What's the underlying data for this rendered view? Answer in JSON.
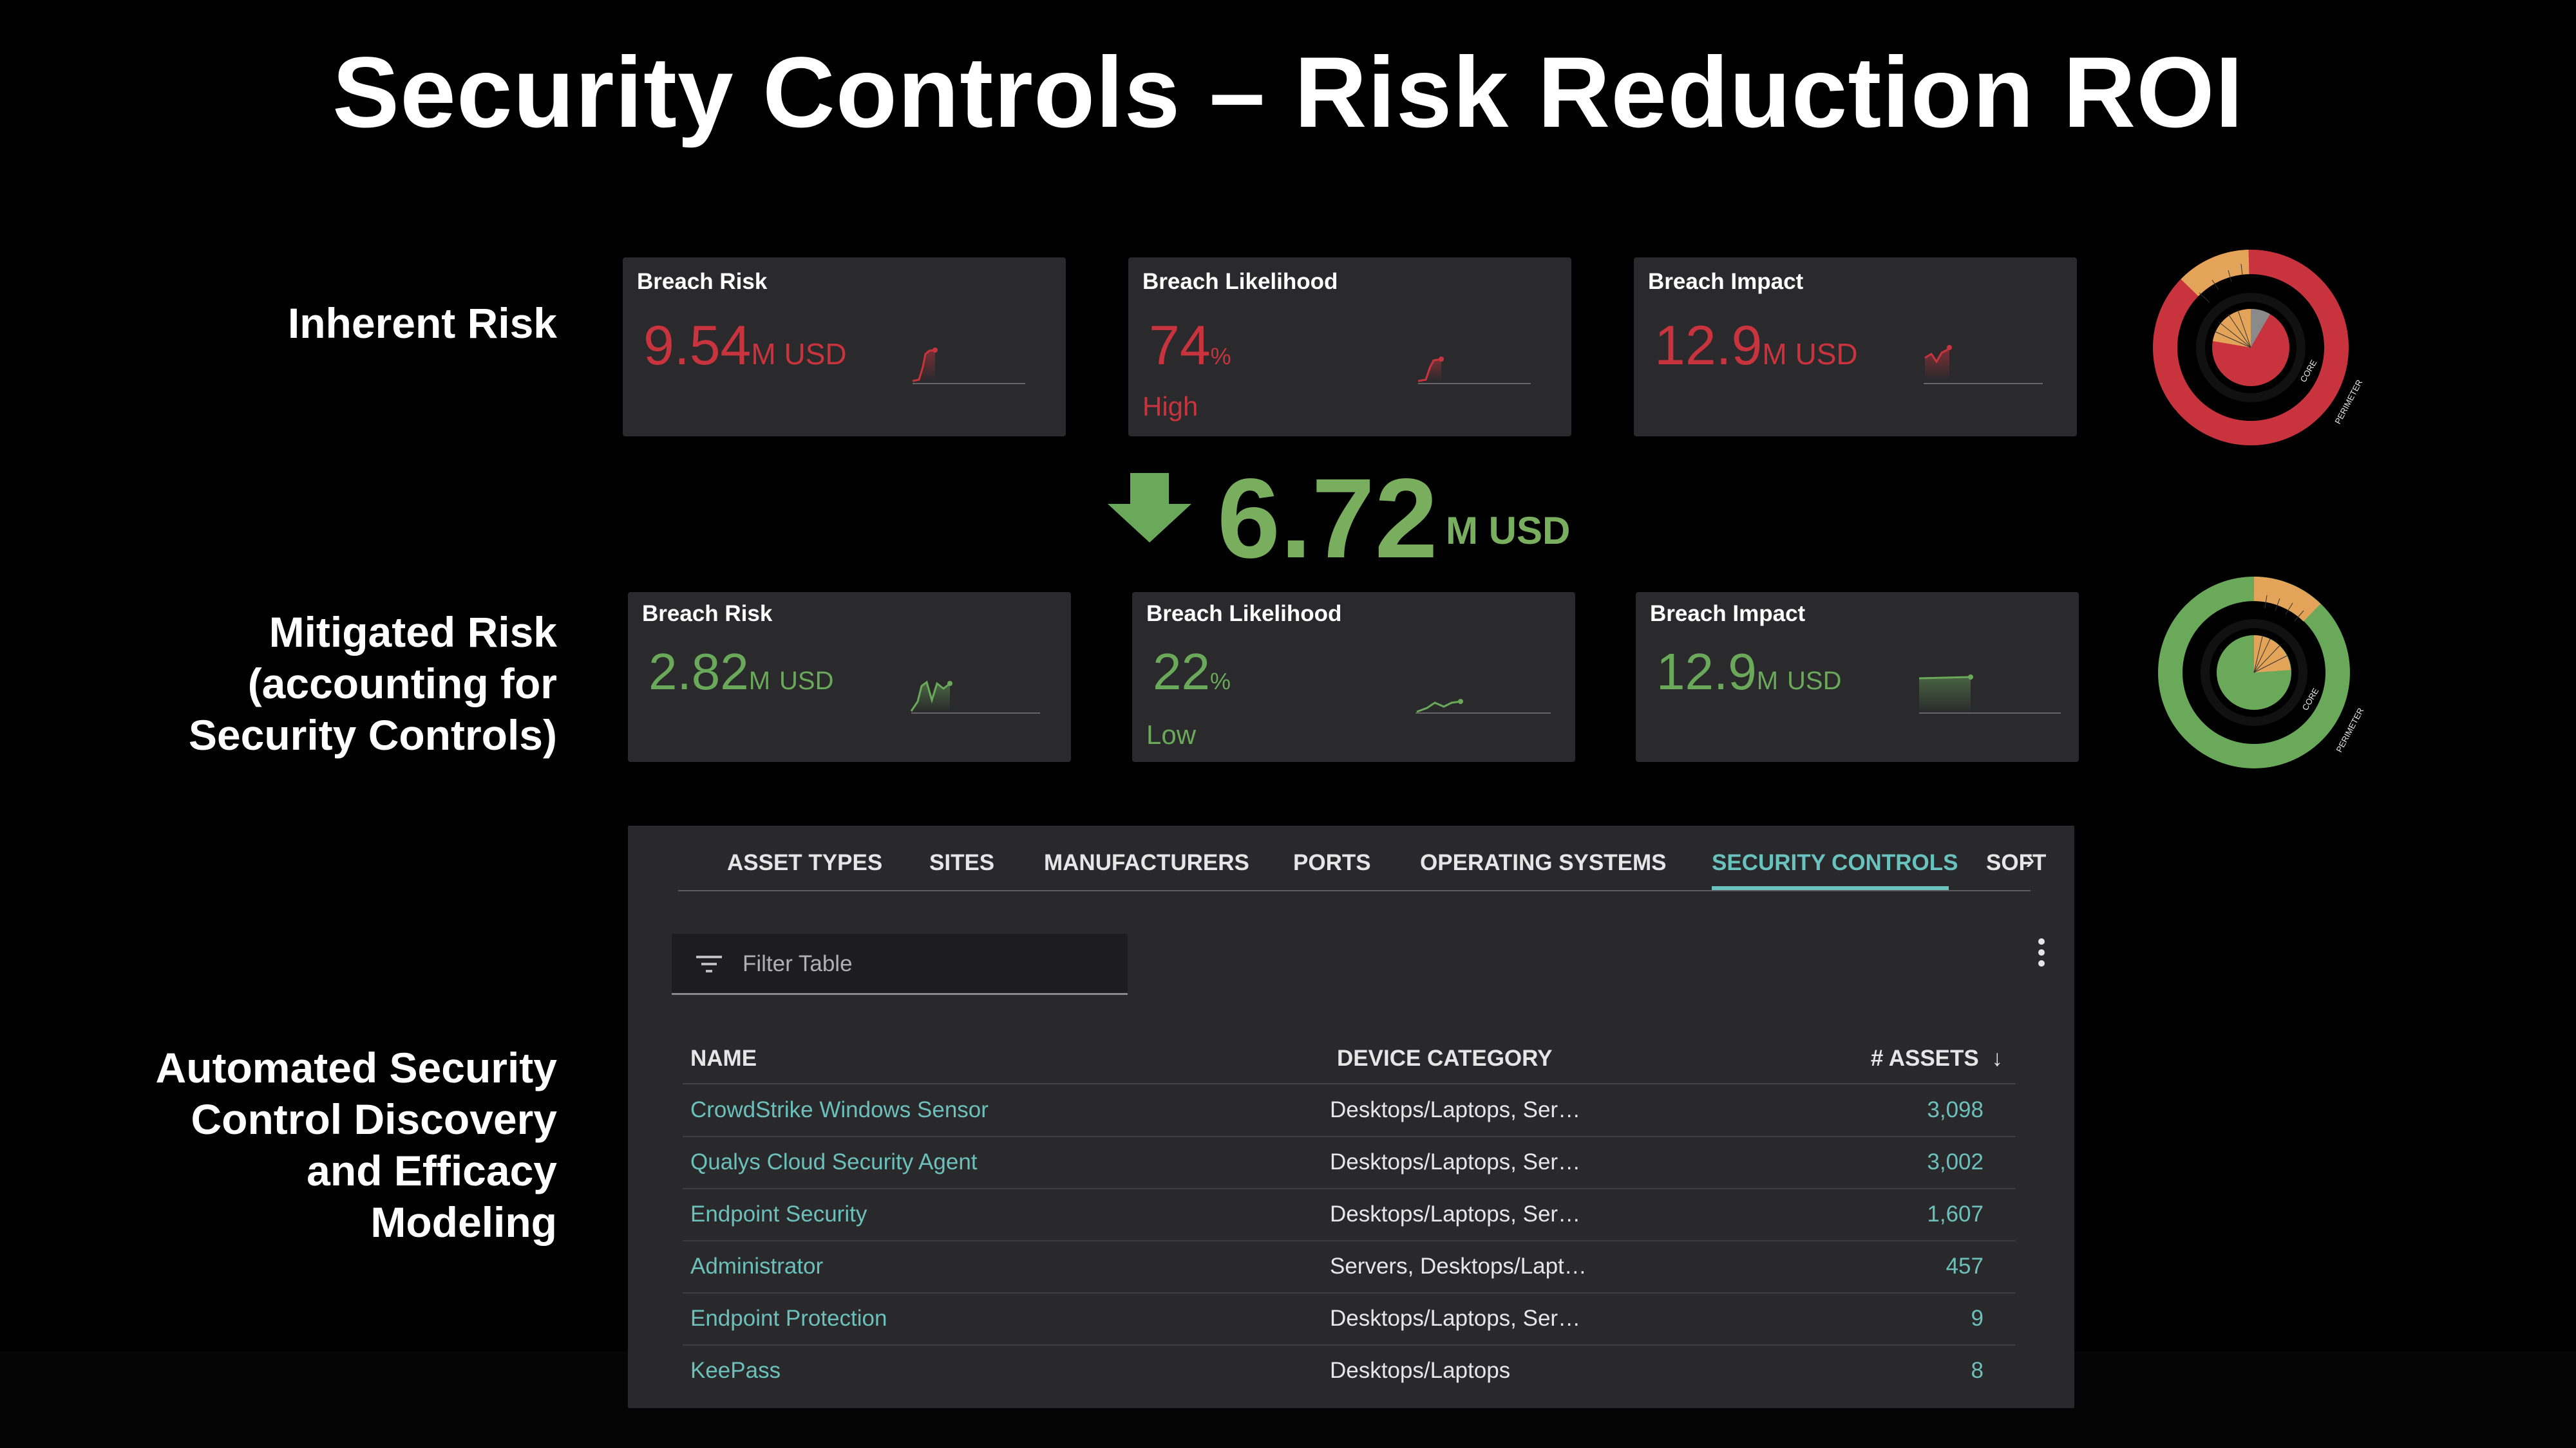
{
  "slide": {
    "title": "Security Controls – Risk Reduction ROI"
  },
  "sections": {
    "inherent": "Inherent Risk",
    "mitigated": [
      "Mitigated Risk",
      "(accounting for",
      "Security Controls)"
    ],
    "automated": [
      "Automated Security",
      "Control Discovery",
      "and Efficacy",
      "Modeling"
    ]
  },
  "inherent_cards": [
    {
      "title": "Breach Risk",
      "value": "9.54",
      "unit": "M USD"
    },
    {
      "title": "Breach Likelihood",
      "value": "74",
      "unit": "%",
      "level": "High"
    },
    {
      "title": "Breach Impact",
      "value": "12.9",
      "unit": "M USD"
    }
  ],
  "mitigated_cards": [
    {
      "title": "Breach Risk",
      "value": "2.82",
      "unit_m": "M",
      "unit_usd": "USD"
    },
    {
      "title": "Breach Likelihood",
      "value": "22",
      "unit": "%",
      "level": "Low"
    },
    {
      "title": "Breach Impact",
      "value": "12.9",
      "unit_m": "M",
      "unit_usd": "USD"
    }
  ],
  "reduction": {
    "value": "6.72",
    "unit": "M USD"
  },
  "donut_labels": {
    "outer": "PERIMETER",
    "inner": "CORE"
  },
  "colors": {
    "risk_red": "#c8333d",
    "safe_green": "#6aa85a",
    "accent_teal": "#69c2bd",
    "card_bg": "#2a2a2c"
  },
  "table": {
    "tabs": [
      "ASSET TYPES",
      "SITES",
      "MANUFACTURERS",
      "PORTS",
      "OPERATING SYSTEMS",
      "SECURITY CONTROLS",
      "SOFT"
    ],
    "active_tab": "SECURITY CONTROLS",
    "filter_placeholder": "Filter Table",
    "columns": {
      "name": "NAME",
      "category": "DEVICE CATEGORY",
      "assets": "# ASSETS"
    },
    "rows": [
      {
        "name": "CrowdStrike Windows Sensor",
        "category": "Desktops/Laptops, Ser…",
        "assets": "3,098"
      },
      {
        "name": "Qualys Cloud Security Agent",
        "category": "Desktops/Laptops, Ser…",
        "assets": "3,002"
      },
      {
        "name": "Endpoint Security",
        "category": "Desktops/Laptops, Ser…",
        "assets": "1,607"
      },
      {
        "name": "Administrator",
        "category": "Servers, Desktops/Lapt…",
        "assets": "457"
      },
      {
        "name": "Endpoint Protection",
        "category": "Desktops/Laptops, Ser…",
        "assets": "9"
      },
      {
        "name": "KeePass",
        "category": "Desktops/Laptops",
        "assets": "8"
      }
    ]
  }
}
